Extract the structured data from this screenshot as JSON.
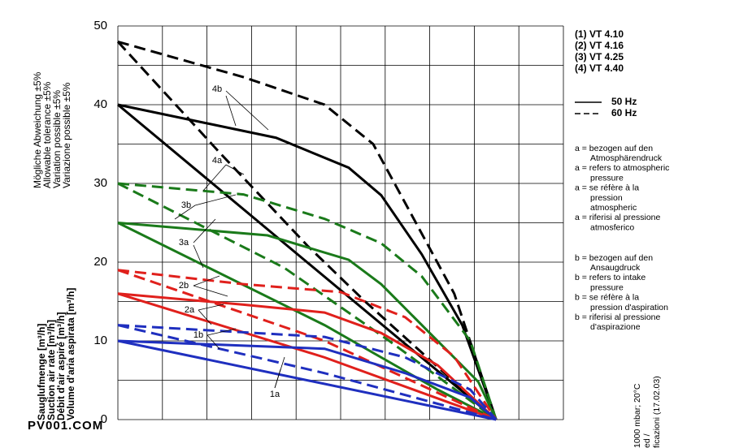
{
  "chart_data": {
    "type": "line",
    "ylim": [
      0,
      50
    ],
    "yticks": [
      0,
      10,
      20,
      30,
      40,
      50
    ],
    "ygrid": [
      0,
      5,
      10,
      15,
      20,
      25,
      30,
      35,
      40,
      45,
      50
    ],
    "xlim": [
      0,
      10
    ],
    "xgrid": [
      0,
      1,
      2,
      3,
      4,
      5,
      6,
      7,
      8,
      9,
      10
    ],
    "y_label_lines": [
      "Sauglufmenge [m³/h]",
      "Suction air rate [m³/h]",
      "Débit d'air aspiré [m³/h]",
      "Volume d'aria aspirata [m³/h]"
    ],
    "tolerance_lines": [
      "Mögliche Abweichung ±5%",
      "Allowable tolerance ±5%",
      "Variation possible ±5%",
      "Variazione possible ±5%"
    ],
    "legend": [
      {
        "text": "(1)  VT 4.10",
        "color": "#1f2fbf"
      },
      {
        "text": "(2)  VT 4.16",
        "color": "#e0201c"
      },
      {
        "text": "(3)  VT 4.25",
        "color": "#1a7a1a"
      },
      {
        "text": "(4)  VT 4.40",
        "color": "#000000"
      }
    ],
    "line_styles": [
      {
        "text": "50 Hz",
        "dashed": false
      },
      {
        "text": "60 Hz",
        "dashed": true
      }
    ],
    "notes_a": [
      "a = bezogen auf den",
      "Atmosphärendruck",
      "a = refers to atmospheric",
      "pressure",
      "a = se réfère à la",
      "pression",
      "atmospheric",
      "a = riferisi al pressione",
      "atmosferico"
    ],
    "notes_b": [
      "b = bezogen auf den",
      "Ansaugdruck",
      "b = refers to intake",
      "pressure",
      "b = se réfère à la",
      "pression d'aspiration",
      "b = riferisi al pressione",
      "d'aspirazione"
    ],
    "footer_lines": [
      "1000 mbar; 20°C",
      "ed /",
      "ficazioni   (17.02.03)"
    ],
    "watermark": "PV001.COM",
    "series": [
      {
        "label": "4b",
        "color": "#000000",
        "dashed": false,
        "x": [
          0,
          3.55,
          5.18,
          5.91,
          6.82,
          7.73,
          8.49
        ],
        "values": [
          40,
          35.8,
          32,
          28.5,
          21,
          12,
          0
        ]
      },
      {
        "label": "4b",
        "color": "#000000",
        "dashed": true,
        "x": [
          0,
          2.82,
          4.64,
          5.73,
          6.45,
          7.55,
          8.49
        ],
        "values": [
          48,
          43.5,
          40,
          35,
          27.5,
          16,
          0
        ]
      },
      {
        "label": "4a",
        "color": "#000000",
        "dashed": false,
        "x": [
          0,
          8.49
        ],
        "values": [
          40,
          0
        ]
      },
      {
        "label": "4a",
        "color": "#000000",
        "dashed": true,
        "x": [
          0,
          2.27,
          4.27,
          5.55,
          8.49
        ],
        "values": [
          48,
          34,
          22,
          15,
          0
        ]
      },
      {
        "label": "3b",
        "color": "#1a7a1a",
        "dashed": false,
        "x": [
          0,
          3.36,
          5.18,
          5.91,
          7,
          8.09,
          8.49
        ],
        "values": [
          25,
          23.4,
          20.3,
          17.2,
          11,
          4.8,
          0
        ]
      },
      {
        "label": "3b",
        "color": "#1a7a1a",
        "dashed": true,
        "x": [
          0,
          2.82,
          4.64,
          5.91,
          6.82,
          7.91,
          8.49
        ],
        "values": [
          30,
          28.6,
          25.5,
          22.4,
          18.2,
          10,
          0
        ]
      },
      {
        "label": "3a",
        "color": "#1a7a1a",
        "dashed": false,
        "x": [
          0,
          4.64,
          7.18,
          8.49
        ],
        "values": [
          25,
          12,
          3.8,
          0
        ]
      },
      {
        "label": "3a",
        "color": "#1a7a1a",
        "dashed": true,
        "x": [
          0,
          3.73,
          6.09,
          8.49
        ],
        "values": [
          30,
          19.3,
          10,
          0
        ]
      },
      {
        "label": "2b",
        "color": "#e0201c",
        "dashed": false,
        "x": [
          0,
          2.82,
          4.64,
          5.91,
          7.18,
          8.49
        ],
        "values": [
          16,
          14.6,
          13.6,
          11,
          6.9,
          0
        ]
      },
      {
        "label": "2b",
        "color": "#e0201c",
        "dashed": true,
        "x": [
          0,
          2.82,
          5,
          6.45,
          7.55,
          8.49
        ],
        "values": [
          19,
          17.2,
          16.2,
          13,
          8,
          0
        ]
      },
      {
        "label": "2a",
        "color": "#e0201c",
        "dashed": false,
        "x": [
          0,
          4.64,
          8.49
        ],
        "values": [
          16,
          7.9,
          0
        ]
      },
      {
        "label": "2a",
        "color": "#e0201c",
        "dashed": true,
        "x": [
          0,
          4.64,
          8.49
        ],
        "values": [
          19,
          10,
          0
        ]
      },
      {
        "label": "1b",
        "color": "#1f2fbf",
        "dashed": false,
        "x": [
          0,
          4.64,
          6.45,
          7.91,
          8.49
        ],
        "values": [
          10,
          9,
          5.9,
          2.8,
          0
        ]
      },
      {
        "label": "1b",
        "color": "#1f2fbf",
        "dashed": true,
        "x": [
          0,
          4.64,
          6.45,
          7.91,
          8.49
        ],
        "values": [
          12,
          10.5,
          7.9,
          3.8,
          0
        ]
      },
      {
        "label": "1a",
        "color": "#1f2fbf",
        "dashed": false,
        "x": [
          0,
          8.49
        ],
        "values": [
          10,
          0
        ]
      },
      {
        "label": "1a",
        "color": "#1f2fbf",
        "dashed": true,
        "x": [
          0,
          4.64,
          8.49
        ],
        "values": [
          12,
          5.9,
          0
        ]
      }
    ]
  }
}
